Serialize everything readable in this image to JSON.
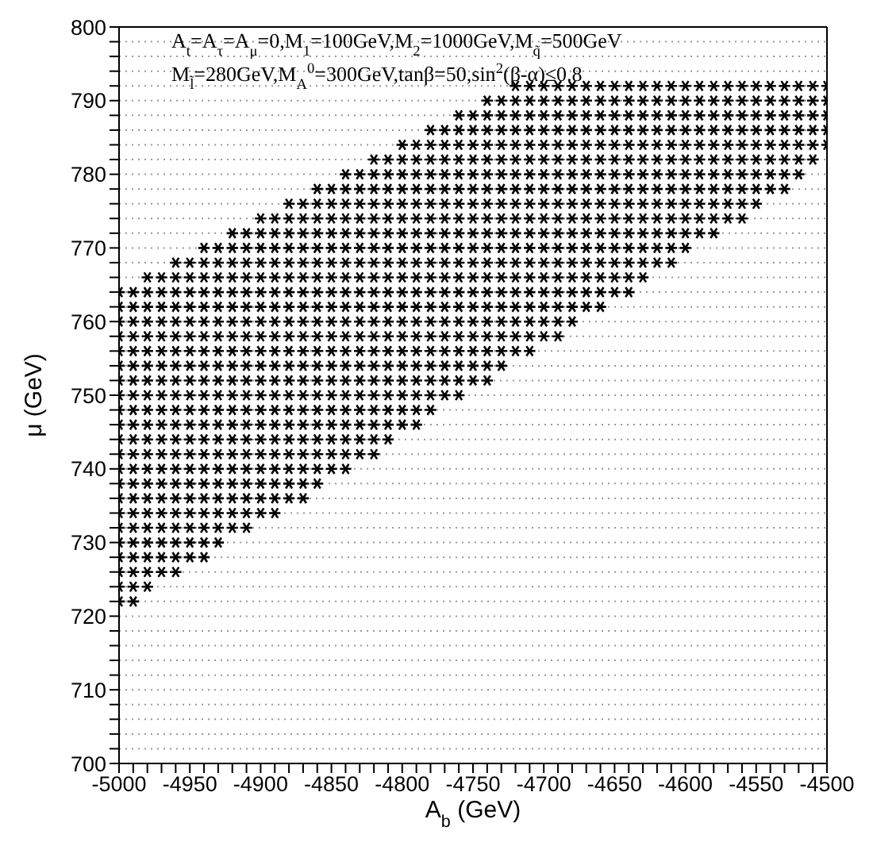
{
  "chart_data": {
    "type": "scatter",
    "xlabel": "A$_{b}$ (GeV)",
    "ylabel": "μ (GeV)",
    "annotations": [
      "A$_{t}$=A$_{τ}$=A$_{μ}$=0,M$_{1}$=100GeV,M$_{2}$=1000GeV,M$_{q̃}$=500GeV",
      "M$_{l̃}$=280GeV,M$_{A}$$^{0}$=300GeV,tanβ=50,sin$^{2}$(β-α)≤0.8"
    ],
    "marker": "cross",
    "grid": "y",
    "line_style": "dotted",
    "xlim": [
      -5000,
      -4500
    ],
    "ylim": [
      700,
      800
    ],
    "xticks": [
      -5000,
      {
        "value": -4990,
        "label": null
      },
      {
        "value": -4980,
        "label": null
      },
      {
        "value": -4970,
        "label": null
      },
      {
        "value": -4960,
        "label": null
      },
      -4950,
      {
        "value": -4940,
        "label": null
      },
      {
        "value": -4930,
        "label": null
      },
      {
        "value": -4920,
        "label": null
      },
      {
        "value": -4910,
        "label": null
      },
      -4900,
      {
        "value": -4890,
        "label": null
      },
      {
        "value": -4880,
        "label": null
      },
      {
        "value": -4870,
        "label": null
      },
      {
        "value": -4860,
        "label": null
      },
      -4850,
      {
        "value": -4840,
        "label": null
      },
      {
        "value": -4830,
        "label": null
      },
      {
        "value": -4820,
        "label": null
      },
      {
        "value": -4810,
        "label": null
      },
      -4800,
      {
        "value": -4790,
        "label": null
      },
      {
        "value": -4780,
        "label": null
      },
      {
        "value": -4770,
        "label": null
      },
      {
        "value": -4760,
        "label": null
      },
      -4750,
      {
        "value": -4740,
        "label": null
      },
      {
        "value": -4730,
        "label": null
      },
      {
        "value": -4720,
        "label": null
      },
      {
        "value": -4710,
        "label": null
      },
      -4700,
      {
        "value": -4690,
        "label": null
      },
      {
        "value": -4680,
        "label": null
      },
      {
        "value": -4670,
        "label": null
      },
      {
        "value": -4660,
        "label": null
      },
      -4650,
      {
        "value": -4640,
        "label": null
      },
      {
        "value": -4630,
        "label": null
      },
      {
        "value": -4620,
        "label": null
      },
      {
        "value": -4610,
        "label": null
      },
      -4600,
      {
        "value": -4590,
        "label": null
      },
      {
        "value": -4580,
        "label": null
      },
      {
        "value": -4570,
        "label": null
      },
      {
        "value": -4560,
        "label": null
      },
      -4550,
      {
        "value": -4540,
        "label": null
      },
      {
        "value": -4530,
        "label": null
      },
      {
        "value": -4520,
        "label": null
      },
      {
        "value": -4510,
        "label": null
      },
      -4500
    ],
    "yticks": [
      700,
      {
        "value": 702,
        "label": null
      },
      {
        "value": 704,
        "label": null
      },
      {
        "value": 706,
        "label": null
      },
      {
        "value": 708,
        "label": null
      },
      710,
      {
        "value": 712,
        "label": null
      },
      {
        "value": 714,
        "label": null
      },
      {
        "value": 716,
        "label": null
      },
      {
        "value": 718,
        "label": null
      },
      720,
      {
        "value": 722,
        "label": null
      },
      {
        "value": 724,
        "label": null
      },
      {
        "value": 726,
        "label": null
      },
      {
        "value": 728,
        "label": null
      },
      730,
      {
        "value": 732,
        "label": null
      },
      {
        "value": 734,
        "label": null
      },
      {
        "value": 736,
        "label": null
      },
      {
        "value": 738,
        "label": null
      },
      740,
      {
        "value": 742,
        "label": null
      },
      {
        "value": 744,
        "label": null
      },
      {
        "value": 746,
        "label": null
      },
      {
        "value": 748,
        "label": null
      },
      750,
      {
        "value": 752,
        "label": null
      },
      {
        "value": 754,
        "label": null
      },
      {
        "value": 756,
        "label": null
      },
      {
        "value": 758,
        "label": null
      },
      760,
      {
        "value": 762,
        "label": null
      },
      {
        "value": 764,
        "label": null
      },
      {
        "value": 766,
        "label": null
      },
      {
        "value": 768,
        "label": null
      },
      770,
      {
        "value": 772,
        "label": null
      },
      {
        "value": 774,
        "label": null
      },
      {
        "value": 776,
        "label": null
      },
      {
        "value": 778,
        "label": null
      },
      780,
      {
        "value": 782,
        "label": null
      },
      {
        "value": 784,
        "label": null
      },
      {
        "value": 786,
        "label": null
      },
      {
        "value": 788,
        "label": null
      },
      790,
      {
        "value": 792,
        "label": null
      },
      {
        "value": 794,
        "label": null
      },
      {
        "value": 796,
        "label": null
      },
      {
        "value": 798,
        "label": null
      },
      800
    ],
    "series": [
      {
        "color": "#000000",
        "x": [
          -4720,
          -4710,
          -4700,
          -4690,
          -4680,
          -4670,
          -4660,
          -4650,
          -4640,
          -4630,
          -4620,
          -4610,
          -4600,
          -4590,
          -4580,
          -4570,
          -4560,
          -4550,
          -4540,
          -4530,
          -4520,
          -4510,
          -4500
        ],
        "values": [
          792,
          792,
          792,
          792,
          792,
          792,
          792,
          792,
          792,
          792,
          792,
          792,
          792,
          792,
          792,
          792,
          792,
          792,
          792,
          792,
          792,
          792,
          792
        ]
      },
      {
        "color": "#000000",
        "x": [
          -4740,
          -4730,
          -4720,
          -4710,
          -4700,
          -4690,
          -4680,
          -4670,
          -4660,
          -4650,
          -4640,
          -4630,
          -4620,
          -4610,
          -4600,
          -4590,
          -4580,
          -4570,
          -4560,
          -4550,
          -4540,
          -4530,
          -4520,
          -4510,
          -4500
        ],
        "values": [
          790,
          790,
          790,
          790,
          790,
          790,
          790,
          790,
          790,
          790,
          790,
          790,
          790,
          790,
          790,
          790,
          790,
          790,
          790,
          790,
          790,
          790,
          790,
          790,
          790
        ]
      },
      {
        "color": "#000000",
        "x": [
          -4760,
          -4750,
          -4740,
          -4730,
          -4720,
          -4710,
          -4700,
          -4690,
          -4680,
          -4670,
          -4660,
          -4650,
          -4640,
          -4630,
          -4620,
          -4610,
          -4600,
          -4590,
          -4580,
          -4570,
          -4560,
          -4550,
          -4540,
          -4530,
          -4520,
          -4510,
          -4500
        ],
        "values": [
          788,
          788,
          788,
          788,
          788,
          788,
          788,
          788,
          788,
          788,
          788,
          788,
          788,
          788,
          788,
          788,
          788,
          788,
          788,
          788,
          788,
          788,
          788,
          788,
          788,
          788,
          788
        ]
      },
      {
        "color": "#000000",
        "x": [
          -4780,
          -4770,
          -4760,
          -4750,
          -4740,
          -4730,
          -4720,
          -4710,
          -4700,
          -4690,
          -4680,
          -4670,
          -4660,
          -4650,
          -4640,
          -4630,
          -4620,
          -4610,
          -4600,
          -4590,
          -4580,
          -4570,
          -4560,
          -4550,
          -4540,
          -4530,
          -4520,
          -4510,
          -4500
        ],
        "values": [
          786,
          786,
          786,
          786,
          786,
          786,
          786,
          786,
          786,
          786,
          786,
          786,
          786,
          786,
          786,
          786,
          786,
          786,
          786,
          786,
          786,
          786,
          786,
          786,
          786,
          786,
          786,
          786,
          786
        ]
      },
      {
        "color": "#000000",
        "x": [
          -4800,
          -4790,
          -4780,
          -4770,
          -4760,
          -4750,
          -4740,
          -4730,
          -4720,
          -4710,
          -4700,
          -4690,
          -4680,
          -4670,
          -4660,
          -4650,
          -4640,
          -4630,
          -4620,
          -4610,
          -4600,
          -4590,
          -4580,
          -4570,
          -4560,
          -4550,
          -4540,
          -4530,
          -4520,
          -4510,
          -4500
        ],
        "values": [
          784,
          784,
          784,
          784,
          784,
          784,
          784,
          784,
          784,
          784,
          784,
          784,
          784,
          784,
          784,
          784,
          784,
          784,
          784,
          784,
          784,
          784,
          784,
          784,
          784,
          784,
          784,
          784,
          784,
          784,
          784
        ]
      },
      {
        "color": "#000000",
        "x": [
          -4820,
          -4810,
          -4800,
          -4790,
          -4780,
          -4770,
          -4760,
          -4750,
          -4740,
          -4730,
          -4720,
          -4710,
          -4700,
          -4690,
          -4680,
          -4670,
          -4660,
          -4650,
          -4640,
          -4630,
          -4620,
          -4610,
          -4600,
          -4590,
          -4580,
          -4570,
          -4560,
          -4550,
          -4540,
          -4530,
          -4520,
          -4510
        ],
        "values": [
          782,
          782,
          782,
          782,
          782,
          782,
          782,
          782,
          782,
          782,
          782,
          782,
          782,
          782,
          782,
          782,
          782,
          782,
          782,
          782,
          782,
          782,
          782,
          782,
          782,
          782,
          782,
          782,
          782,
          782,
          782,
          782
        ]
      },
      {
        "color": "#000000",
        "x": [
          -4840,
          -4830,
          -4820,
          -4810,
          -4800,
          -4790,
          -4780,
          -4770,
          -4760,
          -4750,
          -4740,
          -4730,
          -4720,
          -4710,
          -4700,
          -4690,
          -4680,
          -4670,
          -4660,
          -4650,
          -4640,
          -4630,
          -4620,
          -4610,
          -4600,
          -4590,
          -4580,
          -4570,
          -4560,
          -4550,
          -4540,
          -4530,
          -4520
        ],
        "values": [
          780,
          780,
          780,
          780,
          780,
          780,
          780,
          780,
          780,
          780,
          780,
          780,
          780,
          780,
          780,
          780,
          780,
          780,
          780,
          780,
          780,
          780,
          780,
          780,
          780,
          780,
          780,
          780,
          780,
          780,
          780,
          780,
          780
        ]
      },
      {
        "color": "#000000",
        "x": [
          -4860,
          -4850,
          -4840,
          -4830,
          -4820,
          -4810,
          -4800,
          -4790,
          -4780,
          -4770,
          -4760,
          -4750,
          -4740,
          -4730,
          -4720,
          -4710,
          -4700,
          -4690,
          -4680,
          -4670,
          -4660,
          -4650,
          -4640,
          -4630,
          -4620,
          -4610,
          -4600,
          -4590,
          -4580,
          -4570,
          -4560,
          -4550,
          -4540,
          -4530
        ],
        "values": [
          778,
          778,
          778,
          778,
          778,
          778,
          778,
          778,
          778,
          778,
          778,
          778,
          778,
          778,
          778,
          778,
          778,
          778,
          778,
          778,
          778,
          778,
          778,
          778,
          778,
          778,
          778,
          778,
          778,
          778,
          778,
          778,
          778,
          778
        ]
      },
      {
        "color": "#000000",
        "x": [
          -4880,
          -4870,
          -4860,
          -4850,
          -4840,
          -4830,
          -4820,
          -4810,
          -4800,
          -4790,
          -4780,
          -4770,
          -4760,
          -4750,
          -4740,
          -4730,
          -4720,
          -4710,
          -4700,
          -4690,
          -4680,
          -4670,
          -4660,
          -4650,
          -4640,
          -4630,
          -4620,
          -4610,
          -4600,
          -4590,
          -4580,
          -4570,
          -4560,
          -4550
        ],
        "values": [
          776,
          776,
          776,
          776,
          776,
          776,
          776,
          776,
          776,
          776,
          776,
          776,
          776,
          776,
          776,
          776,
          776,
          776,
          776,
          776,
          776,
          776,
          776,
          776,
          776,
          776,
          776,
          776,
          776,
          776,
          776,
          776,
          776,
          776
        ]
      },
      {
        "color": "#000000",
        "x": [
          -4900,
          -4890,
          -4880,
          -4870,
          -4860,
          -4850,
          -4840,
          -4830,
          -4820,
          -4810,
          -4800,
          -4790,
          -4780,
          -4770,
          -4760,
          -4750,
          -4740,
          -4730,
          -4720,
          -4710,
          -4700,
          -4690,
          -4680,
          -4670,
          -4660,
          -4650,
          -4640,
          -4630,
          -4620,
          -4610,
          -4600,
          -4590,
          -4580,
          -4570,
          -4560
        ],
        "values": [
          774,
          774,
          774,
          774,
          774,
          774,
          774,
          774,
          774,
          774,
          774,
          774,
          774,
          774,
          774,
          774,
          774,
          774,
          774,
          774,
          774,
          774,
          774,
          774,
          774,
          774,
          774,
          774,
          774,
          774,
          774,
          774,
          774,
          774,
          774
        ]
      },
      {
        "color": "#000000",
        "x": [
          -4920,
          -4910,
          -4900,
          -4890,
          -4880,
          -4870,
          -4860,
          -4850,
          -4840,
          -4830,
          -4820,
          -4810,
          -4800,
          -4790,
          -4780,
          -4770,
          -4760,
          -4750,
          -4740,
          -4730,
          -4720,
          -4710,
          -4700,
          -4690,
          -4680,
          -4670,
          -4660,
          -4650,
          -4640,
          -4630,
          -4620,
          -4610,
          -4600,
          -4590,
          -4580
        ],
        "values": [
          772,
          772,
          772,
          772,
          772,
          772,
          772,
          772,
          772,
          772,
          772,
          772,
          772,
          772,
          772,
          772,
          772,
          772,
          772,
          772,
          772,
          772,
          772,
          772,
          772,
          772,
          772,
          772,
          772,
          772,
          772,
          772,
          772,
          772,
          772
        ]
      },
      {
        "color": "#000000",
        "x": [
          -4940,
          -4930,
          -4920,
          -4910,
          -4900,
          -4890,
          -4880,
          -4870,
          -4860,
          -4850,
          -4840,
          -4830,
          -4820,
          -4810,
          -4800,
          -4790,
          -4780,
          -4770,
          -4760,
          -4750,
          -4740,
          -4730,
          -4720,
          -4710,
          -4700,
          -4690,
          -4680,
          -4670,
          -4660,
          -4650,
          -4640,
          -4630,
          -4620,
          -4610,
          -4600
        ],
        "values": [
          770,
          770,
          770,
          770,
          770,
          770,
          770,
          770,
          770,
          770,
          770,
          770,
          770,
          770,
          770,
          770,
          770,
          770,
          770,
          770,
          770,
          770,
          770,
          770,
          770,
          770,
          770,
          770,
          770,
          770,
          770,
          770,
          770,
          770,
          770
        ]
      },
      {
        "color": "#000000",
        "x": [
          -4960,
          -4950,
          -4940,
          -4930,
          -4920,
          -4910,
          -4900,
          -4890,
          -4880,
          -4870,
          -4860,
          -4850,
          -4840,
          -4830,
          -4820,
          -4810,
          -4800,
          -4790,
          -4780,
          -4770,
          -4760,
          -4750,
          -4740,
          -4730,
          -4720,
          -4710,
          -4700,
          -4690,
          -4680,
          -4670,
          -4660,
          -4650,
          -4640,
          -4630,
          -4620,
          -4610
        ],
        "values": [
          768,
          768,
          768,
          768,
          768,
          768,
          768,
          768,
          768,
          768,
          768,
          768,
          768,
          768,
          768,
          768,
          768,
          768,
          768,
          768,
          768,
          768,
          768,
          768,
          768,
          768,
          768,
          768,
          768,
          768,
          768,
          768,
          768,
          768,
          768,
          768
        ]
      },
      {
        "color": "#000000",
        "x": [
          -4980,
          -4970,
          -4960,
          -4950,
          -4940,
          -4930,
          -4920,
          -4910,
          -4900,
          -4890,
          -4880,
          -4870,
          -4860,
          -4850,
          -4840,
          -4830,
          -4820,
          -4810,
          -4800,
          -4790,
          -4780,
          -4770,
          -4760,
          -4750,
          -4740,
          -4730,
          -4720,
          -4710,
          -4700,
          -4690,
          -4680,
          -4670,
          -4660,
          -4650,
          -4640,
          -4630
        ],
        "values": [
          766,
          766,
          766,
          766,
          766,
          766,
          766,
          766,
          766,
          766,
          766,
          766,
          766,
          766,
          766,
          766,
          766,
          766,
          766,
          766,
          766,
          766,
          766,
          766,
          766,
          766,
          766,
          766,
          766,
          766,
          766,
          766,
          766,
          766,
          766,
          766
        ]
      },
      {
        "color": "#000000",
        "x": [
          -5000,
          -4990,
          -4980,
          -4970,
          -4960,
          -4950,
          -4940,
          -4930,
          -4920,
          -4910,
          -4900,
          -4890,
          -4880,
          -4870,
          -4860,
          -4850,
          -4840,
          -4830,
          -4820,
          -4810,
          -4800,
          -4790,
          -4780,
          -4770,
          -4760,
          -4750,
          -4740,
          -4730,
          -4720,
          -4710,
          -4700,
          -4690,
          -4680,
          -4670,
          -4660,
          -4650,
          -4640
        ],
        "values": [
          764,
          764,
          764,
          764,
          764,
          764,
          764,
          764,
          764,
          764,
          764,
          764,
          764,
          764,
          764,
          764,
          764,
          764,
          764,
          764,
          764,
          764,
          764,
          764,
          764,
          764,
          764,
          764,
          764,
          764,
          764,
          764,
          764,
          764,
          764,
          764,
          764
        ]
      },
      {
        "color": "#000000",
        "x": [
          -5000,
          -4990,
          -4980,
          -4970,
          -4960,
          -4950,
          -4940,
          -4930,
          -4920,
          -4910,
          -4900,
          -4890,
          -4880,
          -4870,
          -4860,
          -4850,
          -4840,
          -4830,
          -4820,
          -4810,
          -4800,
          -4790,
          -4780,
          -4770,
          -4760,
          -4750,
          -4740,
          -4730,
          -4720,
          -4710,
          -4700,
          -4690,
          -4680,
          -4670,
          -4660
        ],
        "values": [
          762,
          762,
          762,
          762,
          762,
          762,
          762,
          762,
          762,
          762,
          762,
          762,
          762,
          762,
          762,
          762,
          762,
          762,
          762,
          762,
          762,
          762,
          762,
          762,
          762,
          762,
          762,
          762,
          762,
          762,
          762,
          762,
          762,
          762,
          762
        ]
      },
      {
        "color": "#000000",
        "x": [
          -5000,
          -4990,
          -4980,
          -4970,
          -4960,
          -4950,
          -4940,
          -4930,
          -4920,
          -4910,
          -4900,
          -4890,
          -4880,
          -4870,
          -4860,
          -4850,
          -4840,
          -4830,
          -4820,
          -4810,
          -4800,
          -4790,
          -4780,
          -4770,
          -4760,
          -4750,
          -4740,
          -4730,
          -4720,
          -4710,
          -4700,
          -4690,
          -4680
        ],
        "values": [
          760,
          760,
          760,
          760,
          760,
          760,
          760,
          760,
          760,
          760,
          760,
          760,
          760,
          760,
          760,
          760,
          760,
          760,
          760,
          760,
          760,
          760,
          760,
          760,
          760,
          760,
          760,
          760,
          760,
          760,
          760,
          760,
          760
        ]
      },
      {
        "color": "#000000",
        "x": [
          -5000,
          -4990,
          -4980,
          -4970,
          -4960,
          -4950,
          -4940,
          -4930,
          -4920,
          -4910,
          -4900,
          -4890,
          -4880,
          -4870,
          -4860,
          -4850,
          -4840,
          -4830,
          -4820,
          -4810,
          -4800,
          -4790,
          -4780,
          -4770,
          -4760,
          -4750,
          -4740,
          -4730,
          -4720,
          -4710,
          -4700,
          -4690
        ],
        "values": [
          758,
          758,
          758,
          758,
          758,
          758,
          758,
          758,
          758,
          758,
          758,
          758,
          758,
          758,
          758,
          758,
          758,
          758,
          758,
          758,
          758,
          758,
          758,
          758,
          758,
          758,
          758,
          758,
          758,
          758,
          758,
          758
        ]
      },
      {
        "color": "#000000",
        "x": [
          -5000,
          -4990,
          -4980,
          -4970,
          -4960,
          -4950,
          -4940,
          -4930,
          -4920,
          -4910,
          -4900,
          -4890,
          -4880,
          -4870,
          -4860,
          -4850,
          -4840,
          -4830,
          -4820,
          -4810,
          -4800,
          -4790,
          -4780,
          -4770,
          -4760,
          -4750,
          -4740,
          -4730,
          -4720,
          -4710
        ],
        "values": [
          756,
          756,
          756,
          756,
          756,
          756,
          756,
          756,
          756,
          756,
          756,
          756,
          756,
          756,
          756,
          756,
          756,
          756,
          756,
          756,
          756,
          756,
          756,
          756,
          756,
          756,
          756,
          756,
          756,
          756
        ]
      },
      {
        "color": "#000000",
        "x": [
          -5000,
          -4990,
          -4980,
          -4970,
          -4960,
          -4950,
          -4940,
          -4930,
          -4920,
          -4910,
          -4900,
          -4890,
          -4880,
          -4870,
          -4860,
          -4850,
          -4840,
          -4830,
          -4820,
          -4810,
          -4800,
          -4790,
          -4780,
          -4770,
          -4760,
          -4750,
          -4740,
          -4730
        ],
        "values": [
          754,
          754,
          754,
          754,
          754,
          754,
          754,
          754,
          754,
          754,
          754,
          754,
          754,
          754,
          754,
          754,
          754,
          754,
          754,
          754,
          754,
          754,
          754,
          754,
          754,
          754,
          754,
          754
        ]
      },
      {
        "color": "#000000",
        "x": [
          -5000,
          -4990,
          -4980,
          -4970,
          -4960,
          -4950,
          -4940,
          -4930,
          -4920,
          -4910,
          -4900,
          -4890,
          -4880,
          -4870,
          -4860,
          -4850,
          -4840,
          -4830,
          -4820,
          -4810,
          -4800,
          -4790,
          -4780,
          -4770,
          -4760,
          -4750,
          -4740
        ],
        "values": [
          752,
          752,
          752,
          752,
          752,
          752,
          752,
          752,
          752,
          752,
          752,
          752,
          752,
          752,
          752,
          752,
          752,
          752,
          752,
          752,
          752,
          752,
          752,
          752,
          752,
          752,
          752
        ]
      },
      {
        "color": "#000000",
        "x": [
          -5000,
          -4990,
          -4980,
          -4970,
          -4960,
          -4950,
          -4940,
          -4930,
          -4920,
          -4910,
          -4900,
          -4890,
          -4880,
          -4870,
          -4860,
          -4850,
          -4840,
          -4830,
          -4820,
          -4810,
          -4800,
          -4790,
          -4780,
          -4770,
          -4760
        ],
        "values": [
          750,
          750,
          750,
          750,
          750,
          750,
          750,
          750,
          750,
          750,
          750,
          750,
          750,
          750,
          750,
          750,
          750,
          750,
          750,
          750,
          750,
          750,
          750,
          750,
          750
        ]
      },
      {
        "color": "#000000",
        "x": [
          -5000,
          -4990,
          -4980,
          -4970,
          -4960,
          -4950,
          -4940,
          -4930,
          -4920,
          -4910,
          -4900,
          -4890,
          -4880,
          -4870,
          -4860,
          -4850,
          -4840,
          -4830,
          -4820,
          -4810,
          -4800,
          -4790,
          -4780
        ],
        "values": [
          748,
          748,
          748,
          748,
          748,
          748,
          748,
          748,
          748,
          748,
          748,
          748,
          748,
          748,
          748,
          748,
          748,
          748,
          748,
          748,
          748,
          748,
          748
        ]
      },
      {
        "color": "#000000",
        "x": [
          -5000,
          -4990,
          -4980,
          -4970,
          -4960,
          -4950,
          -4940,
          -4930,
          -4920,
          -4910,
          -4900,
          -4890,
          -4880,
          -4870,
          -4860,
          -4850,
          -4840,
          -4830,
          -4820,
          -4810,
          -4800,
          -4790
        ],
        "values": [
          746,
          746,
          746,
          746,
          746,
          746,
          746,
          746,
          746,
          746,
          746,
          746,
          746,
          746,
          746,
          746,
          746,
          746,
          746,
          746,
          746,
          746
        ]
      },
      {
        "color": "#000000",
        "x": [
          -5000,
          -4990,
          -4980,
          -4970,
          -4960,
          -4950,
          -4940,
          -4930,
          -4920,
          -4910,
          -4900,
          -4890,
          -4880,
          -4870,
          -4860,
          -4850,
          -4840,
          -4830,
          -4820,
          -4810
        ],
        "values": [
          744,
          744,
          744,
          744,
          744,
          744,
          744,
          744,
          744,
          744,
          744,
          744,
          744,
          744,
          744,
          744,
          744,
          744,
          744,
          744
        ]
      },
      {
        "color": "#000000",
        "x": [
          -5000,
          -4990,
          -4980,
          -4970,
          -4960,
          -4950,
          -4940,
          -4930,
          -4920,
          -4910,
          -4900,
          -4890,
          -4880,
          -4870,
          -4860,
          -4850,
          -4840,
          -4830,
          -4820
        ],
        "values": [
          742,
          742,
          742,
          742,
          742,
          742,
          742,
          742,
          742,
          742,
          742,
          742,
          742,
          742,
          742,
          742,
          742,
          742,
          742
        ]
      },
      {
        "color": "#000000",
        "x": [
          -5000,
          -4990,
          -4980,
          -4970,
          -4960,
          -4950,
          -4940,
          -4930,
          -4920,
          -4910,
          -4900,
          -4890,
          -4880,
          -4870,
          -4860,
          -4850,
          -4840
        ],
        "values": [
          740,
          740,
          740,
          740,
          740,
          740,
          740,
          740,
          740,
          740,
          740,
          740,
          740,
          740,
          740,
          740,
          740
        ]
      },
      {
        "color": "#000000",
        "x": [
          -5000,
          -4990,
          -4980,
          -4970,
          -4960,
          -4950,
          -4940,
          -4930,
          -4920,
          -4910,
          -4900,
          -4890,
          -4880,
          -4870,
          -4860
        ],
        "values": [
          738,
          738,
          738,
          738,
          738,
          738,
          738,
          738,
          738,
          738,
          738,
          738,
          738,
          738,
          738
        ]
      },
      {
        "color": "#000000",
        "x": [
          -5000,
          -4990,
          -4980,
          -4970,
          -4960,
          -4950,
          -4940,
          -4930,
          -4920,
          -4910,
          -4900,
          -4890,
          -4880,
          -4870
        ],
        "values": [
          736,
          736,
          736,
          736,
          736,
          736,
          736,
          736,
          736,
          736,
          736,
          736,
          736,
          736
        ]
      },
      {
        "color": "#000000",
        "x": [
          -5000,
          -4990,
          -4980,
          -4970,
          -4960,
          -4950,
          -4940,
          -4930,
          -4920,
          -4910,
          -4900,
          -4890
        ],
        "values": [
          734,
          734,
          734,
          734,
          734,
          734,
          734,
          734,
          734,
          734,
          734,
          734
        ]
      },
      {
        "color": "#000000",
        "x": [
          -5000,
          -4990,
          -4980,
          -4970,
          -4960,
          -4950,
          -4940,
          -4930,
          -4920,
          -4910
        ],
        "values": [
          732,
          732,
          732,
          732,
          732,
          732,
          732,
          732,
          732,
          732
        ]
      },
      {
        "color": "#000000",
        "x": [
          -5000,
          -4990,
          -4980,
          -4970,
          -4960,
          -4950,
          -4940,
          -4930
        ],
        "values": [
          730,
          730,
          730,
          730,
          730,
          730,
          730,
          730
        ]
      },
      {
        "color": "#000000",
        "x": [
          -5000,
          -4990,
          -4980,
          -4970,
          -4960,
          -4950,
          -4940
        ],
        "values": [
          728,
          728,
          728,
          728,
          728,
          728,
          728
        ]
      },
      {
        "color": "#000000",
        "x": [
          -5000,
          -4990,
          -4980,
          -4970,
          -4960
        ],
        "values": [
          726,
          726,
          726,
          726,
          726
        ]
      },
      {
        "color": "#000000",
        "x": [
          -5000,
          -4990,
          -4980
        ],
        "values": [
          724,
          724,
          724
        ]
      },
      {
        "color": "#000000",
        "x": [
          -5000,
          -4990
        ],
        "values": [
          722,
          722
        ]
      }
    ]
  }
}
